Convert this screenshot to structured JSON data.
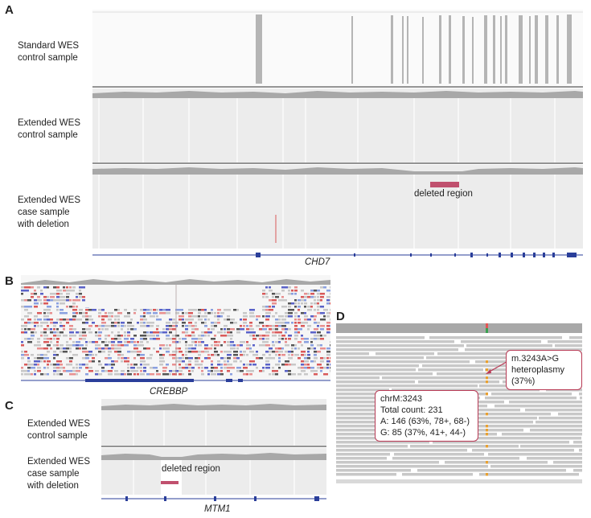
{
  "panel_a": {
    "letter": "A",
    "tracks": [
      {
        "label": "Standard WES\ncontrol sample"
      },
      {
        "label": "Extended WES\ncontrol sample"
      },
      {
        "label": "Extended WES\ncase sample\nwith deletion"
      }
    ],
    "deleted_region_label": "deleted region",
    "gene": "CHD7"
  },
  "panel_b": {
    "letter": "B",
    "gene": "CREBBP"
  },
  "panel_c": {
    "letter": "C",
    "tracks": [
      {
        "label": "Extended WES\ncontrol sample"
      },
      {
        "label": "Extended WES\ncase sample\nwith deletion"
      }
    ],
    "deleted_region_label": "deleted region",
    "gene": "MTM1"
  },
  "panel_d": {
    "letter": "D",
    "variant_callout": {
      "line1": "m.3243A>G",
      "line2": "heteroplasmy",
      "line3": "(37%)"
    },
    "info_callout": {
      "line1": "chrM:3243",
      "line2": "Total count: 231",
      "line3": "A: 146 (63%, 78+, 68-)",
      "line4": "G: 85 (37%, 41+, 44-)"
    }
  },
  "colors": {
    "accent": "#c0506e",
    "read_gray": "#c8c8c8",
    "coverage_gray": "#a8a8a8",
    "gene_blue": "#2a3e9a",
    "read_blue": "#5a62c8",
    "read_red": "#d95a5a"
  }
}
